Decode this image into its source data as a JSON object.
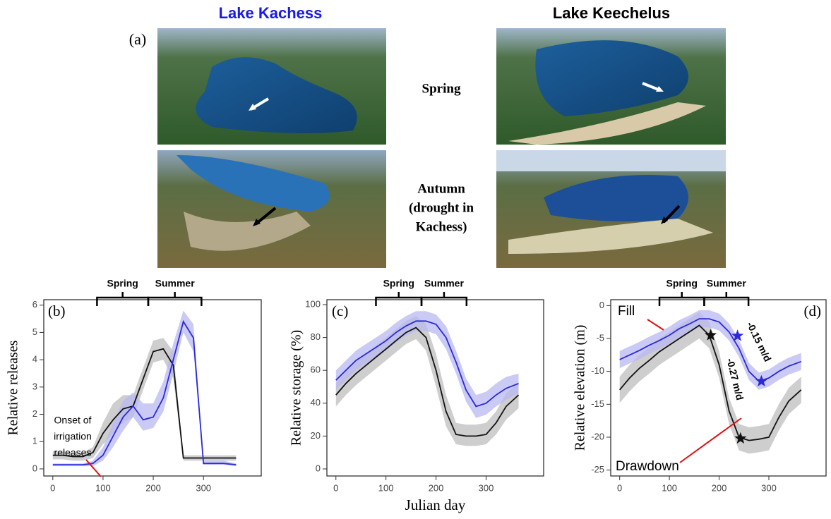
{
  "figure": {
    "panel_a": {
      "label": "(a)",
      "titles": [
        "Lake Kachess",
        "Lake Keechelus"
      ],
      "title_colors": [
        "#1a1ae6",
        "#000000"
      ],
      "row_labels": {
        "spring": "Spring",
        "autumn": [
          "Autumn",
          "(drought in",
          "Kachess)"
        ]
      }
    }
  },
  "chart_data": [
    {
      "type": "line",
      "panel_label": "(b)",
      "ylabel": "Relative releases",
      "x": [
        0,
        20,
        40,
        60,
        80,
        100,
        120,
        140,
        160,
        180,
        200,
        220,
        240,
        260,
        280,
        300,
        320,
        340,
        365
      ],
      "xlim": [
        -18,
        415
      ],
      "xticks": [
        0,
        100,
        200,
        300
      ],
      "ylim": [
        -0.26,
        6.2
      ],
      "yticks": [
        0,
        1,
        2,
        3,
        4,
        5,
        6
      ],
      "seasons": [
        {
          "label": "Spring",
          "start": 88,
          "end": 190
        },
        {
          "label": "Summer",
          "start": 190,
          "end": 296
        }
      ],
      "series": [
        {
          "color": "#111111",
          "band_color": "#bdbdbd",
          "values": [
            0.5,
            0.5,
            0.45,
            0.45,
            0.6,
            1.3,
            1.8,
            2.2,
            2.3,
            3.3,
            4.3,
            4.4,
            3.8,
            0.4,
            0.4,
            0.4,
            0.4,
            0.4,
            0.4
          ],
          "lower": [
            0.35,
            0.35,
            0.3,
            0.3,
            0.4,
            0.9,
            1.3,
            1.7,
            1.9,
            2.9,
            3.9,
            4.0,
            3.3,
            0.3,
            0.3,
            0.3,
            0.3,
            0.3,
            0.3
          ],
          "upper": [
            0.65,
            0.65,
            0.6,
            0.6,
            0.8,
            1.7,
            2.4,
            2.7,
            2.7,
            3.7,
            4.7,
            4.8,
            4.3,
            0.5,
            0.5,
            0.5,
            0.5,
            0.5,
            0.5
          ]
        },
        {
          "color": "#2a2adc",
          "band_color": "#b8b8f2",
          "values": [
            0.15,
            0.15,
            0.15,
            0.15,
            0.2,
            0.5,
            1.2,
            1.9,
            2.3,
            1.8,
            1.9,
            2.6,
            4.0,
            5.4,
            4.8,
            0.2,
            0.2,
            0.2,
            0.15
          ],
          "lower": [
            0.1,
            0.1,
            0.1,
            0.1,
            0.1,
            0.3,
            0.8,
            1.4,
            1.9,
            1.4,
            1.5,
            2.1,
            3.5,
            5.0,
            4.3,
            0.15,
            0.15,
            0.15,
            0.1
          ],
          "upper": [
            0.2,
            0.2,
            0.2,
            0.2,
            0.3,
            0.8,
            1.7,
            2.5,
            2.8,
            2.4,
            2.4,
            3.2,
            4.6,
            5.8,
            5.3,
            0.3,
            0.3,
            0.3,
            0.2
          ]
        }
      ],
      "annotations": [
        {
          "text": [
            "Onset of",
            "irrigation",
            "releases"
          ]
        }
      ]
    },
    {
      "type": "line",
      "panel_label": "(c)",
      "ylabel": "Relative storage (%)",
      "xlabel": "Julian day",
      "x": [
        0,
        20,
        40,
        60,
        80,
        100,
        120,
        140,
        160,
        180,
        200,
        220,
        240,
        260,
        280,
        300,
        320,
        340,
        365
      ],
      "xlim": [
        -18,
        415
      ],
      "xticks": [
        0,
        100,
        200,
        300
      ],
      "ylim": [
        -4.3,
        103
      ],
      "yticks": [
        0,
        20,
        40,
        60,
        80,
        100
      ],
      "seasons": [
        {
          "label": "Spring",
          "start": 80,
          "end": 171
        },
        {
          "label": "Summer",
          "start": 171,
          "end": 261
        }
      ],
      "series": [
        {
          "color": "#111111",
          "band_color": "#bdbdbd",
          "values": [
            45,
            52,
            58,
            63,
            68,
            73,
            78,
            83,
            86,
            80,
            60,
            35,
            21,
            20,
            20,
            21,
            28,
            38,
            45
          ],
          "lower": [
            38,
            45,
            51,
            56,
            61,
            66,
            71,
            76,
            79,
            72,
            50,
            26,
            15,
            14,
            14,
            15,
            21,
            30,
            37
          ],
          "upper": [
            52,
            59,
            65,
            70,
            75,
            80,
            85,
            90,
            93,
            88,
            70,
            45,
            28,
            27,
            27,
            28,
            35,
            46,
            53
          ]
        },
        {
          "color": "#2a2adc",
          "band_color": "#b8b8f2",
          "values": [
            54,
            60,
            66,
            70,
            74,
            78,
            83,
            87,
            90,
            90,
            88,
            80,
            65,
            48,
            38,
            40,
            45,
            49,
            52
          ],
          "lower": [
            48,
            54,
            60,
            64,
            68,
            72,
            77,
            81,
            84,
            84,
            82,
            73,
            58,
            41,
            31,
            33,
            38,
            42,
            46
          ],
          "upper": [
            60,
            66,
            72,
            76,
            80,
            84,
            89,
            93,
            96,
            96,
            94,
            87,
            72,
            55,
            45,
            47,
            52,
            56,
            58
          ]
        }
      ],
      "annotations": []
    },
    {
      "type": "line",
      "panel_label": "(d)",
      "ylabel": "Relative elevation (m)",
      "x": [
        0,
        20,
        40,
        60,
        80,
        100,
        120,
        140,
        160,
        180,
        200,
        220,
        240,
        260,
        280,
        300,
        320,
        340,
        365
      ],
      "xlim": [
        -18,
        415
      ],
      "xticks": [
        0,
        100,
        200,
        300
      ],
      "ylim": [
        -25.9,
        0.9
      ],
      "yticks": [
        0,
        -5,
        -10,
        -15,
        -20,
        -25
      ],
      "seasons": [
        {
          "label": "Spring",
          "start": 80,
          "end": 170
        },
        {
          "label": "Summer",
          "start": 170,
          "end": 259
        }
      ],
      "series": [
        {
          "color": "#111111",
          "band_color": "#bdbdbd",
          "values": [
            -12.8,
            -11,
            -9.5,
            -8.3,
            -7,
            -6,
            -5,
            -4,
            -3,
            -4.5,
            -9,
            -16,
            -20,
            -20.5,
            -20.3,
            -20,
            -17,
            -14.5,
            -12.8
          ],
          "lower": [
            -14.8,
            -13,
            -11.5,
            -10.3,
            -9,
            -8,
            -7,
            -6,
            -5,
            -6.5,
            -11,
            -18,
            -22,
            -22.5,
            -22.3,
            -22,
            -19,
            -16.5,
            -14.8
          ],
          "upper": [
            -10.8,
            -9,
            -7.5,
            -6.3,
            -5,
            -4,
            -3,
            -2,
            -1,
            -2.5,
            -7,
            -14,
            -18,
            -18.5,
            -18.3,
            -18,
            -15,
            -12.5,
            -10.8
          ]
        },
        {
          "color": "#2a2adc",
          "band_color": "#b8b8f2",
          "values": [
            -8.2,
            -7.5,
            -6.8,
            -6,
            -5.3,
            -4.5,
            -3.5,
            -2.8,
            -2,
            -2,
            -2.5,
            -4,
            -6.5,
            -10,
            -11.5,
            -11,
            -10,
            -9.2,
            -8.5
          ],
          "lower": [
            -9.5,
            -8.8,
            -8.1,
            -7.3,
            -6.6,
            -5.8,
            -4.8,
            -4.1,
            -3.3,
            -3.3,
            -3.8,
            -5.3,
            -7.8,
            -11.3,
            -12.8,
            -12.3,
            -11.3,
            -10.5,
            -9.8
          ],
          "upper": [
            -6.9,
            -6.2,
            -5.5,
            -4.7,
            -4,
            -3.2,
            -2.2,
            -1.5,
            -0.7,
            -0.7,
            -1.2,
            -2.7,
            -5.2,
            -8.7,
            -10.2,
            -9.7,
            -8.7,
            -7.9,
            -7.2
          ]
        }
      ],
      "markers": [
        {
          "x": 183,
          "y": -4.5,
          "color": "#111111"
        },
        {
          "x": 243,
          "y": -20.2,
          "color": "#111111"
        },
        {
          "x": 237,
          "y": -4.6,
          "color": "#2a2adc"
        },
        {
          "x": 285,
          "y": -11.5,
          "color": "#2a2adc"
        }
      ],
      "annotations": [
        {
          "text": "Fill"
        },
        {
          "text": "Drawdown"
        },
        {
          "text": "-0.15 m/d"
        },
        {
          "text": "-0.27 m/d"
        }
      ]
    }
  ]
}
